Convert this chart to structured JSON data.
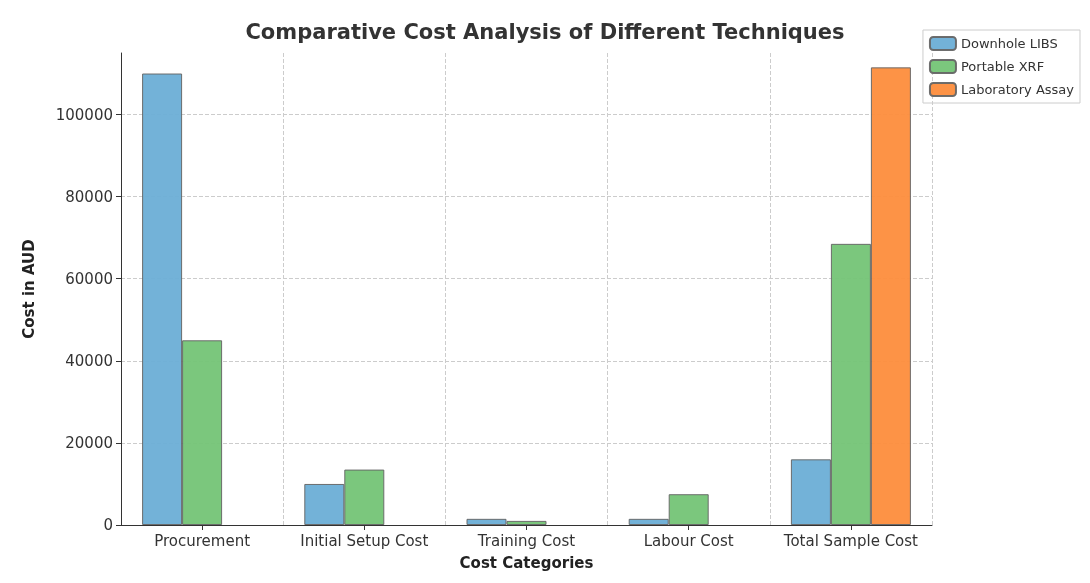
{
  "chart_data": {
    "type": "bar",
    "title": "Comparative Cost Analysis of Different Techniques",
    "xlabel": "Cost Categories",
    "ylabel": "Cost in AUD",
    "categories": [
      "Procurement",
      "Initial Setup Cost",
      "Training Cost",
      "Labour Cost",
      "Total Sample Cost"
    ],
    "series": [
      {
        "name": "Downhole LIBS",
        "color": "#6baed6",
        "values": [
          110000,
          10000,
          1500,
          1500,
          16000
        ]
      },
      {
        "name": "Portable XRF",
        "color": "#74c476",
        "values": [
          45000,
          13500,
          1000,
          7500,
          68500
        ]
      },
      {
        "name": "Laboratory Assay",
        "color": "#fd8d3c",
        "values": [
          null,
          null,
          null,
          null,
          111500
        ]
      }
    ],
    "ylim": [
      0,
      115000
    ],
    "yticks": [
      0,
      20000,
      40000,
      60000,
      80000,
      100000
    ],
    "grid": true,
    "legend": "top right"
  }
}
